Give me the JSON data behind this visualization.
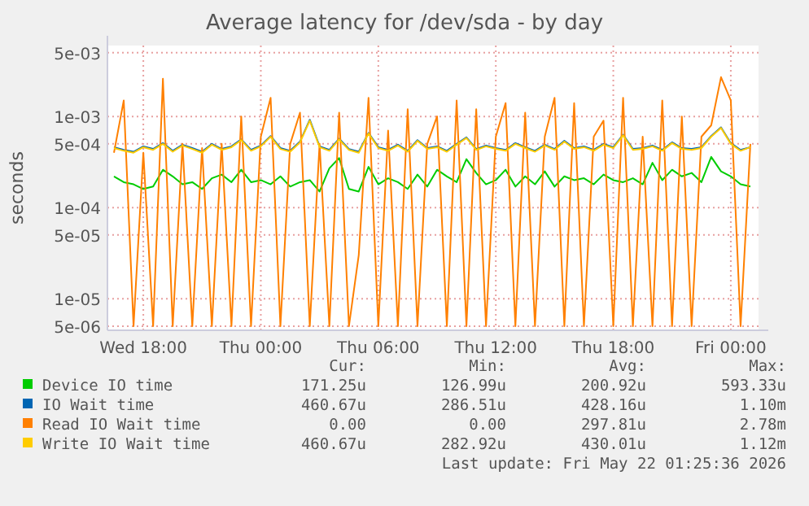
{
  "chart_data": {
    "type": "line",
    "title": "Average latency for /dev/sda - by day",
    "ylabel": "seconds",
    "log": "y",
    "grid": true,
    "legend": "bottom",
    "line_style": "solid",
    "marker": "none",
    "xlim": [
      "2026-05-20T16:10",
      "2026-05-22T01:25"
    ],
    "xticks": [
      {
        "value": "2026-05-20T18:00",
        "label": "Wed 18:00"
      },
      {
        "value": "2026-05-21T00:00",
        "label": "Thu 00:00"
      },
      {
        "value": "2026-05-21T06:00",
        "label": "Thu 06:00"
      },
      {
        "value": "2026-05-21T12:00",
        "label": "Thu 12:00"
      },
      {
        "value": "2026-05-21T18:00",
        "label": "Thu 18:00"
      },
      {
        "value": "2026-05-22T00:00",
        "label": "Fri 00:00"
      }
    ],
    "ylim": [
      4.5e-06,
      0.006
    ],
    "yticks": [
      {
        "value": 5e-06,
        "label": "5e-06"
      },
      {
        "value": 1e-05,
        "label": "1e-05"
      },
      {
        "value": 5e-05,
        "label": "5e-05"
      },
      {
        "value": 0.0001,
        "label": "1e-04"
      },
      {
        "value": 0.0005,
        "label": "5e-04"
      },
      {
        "value": 0.001,
        "label": "1e-03"
      },
      {
        "value": 0.005,
        "label": "5e-03"
      }
    ],
    "x": [
      "2026-05-20T16:30",
      "2026-05-20T17:00",
      "2026-05-20T17:30",
      "2026-05-20T18:00",
      "2026-05-20T18:30",
      "2026-05-20T19:00",
      "2026-05-20T19:30",
      "2026-05-20T20:00",
      "2026-05-20T20:30",
      "2026-05-20T21:00",
      "2026-05-20T21:30",
      "2026-05-20T22:00",
      "2026-05-20T22:30",
      "2026-05-20T23:00",
      "2026-05-20T23:30",
      "2026-05-21T00:00",
      "2026-05-21T00:30",
      "2026-05-21T01:00",
      "2026-05-21T01:30",
      "2026-05-21T02:00",
      "2026-05-21T02:30",
      "2026-05-21T03:00",
      "2026-05-21T03:30",
      "2026-05-21T04:00",
      "2026-05-21T04:30",
      "2026-05-21T05:00",
      "2026-05-21T05:30",
      "2026-05-21T06:00",
      "2026-05-21T06:30",
      "2026-05-21T07:00",
      "2026-05-21T07:30",
      "2026-05-21T08:00",
      "2026-05-21T08:30",
      "2026-05-21T09:00",
      "2026-05-21T09:30",
      "2026-05-21T10:00",
      "2026-05-21T10:30",
      "2026-05-21T11:00",
      "2026-05-21T11:30",
      "2026-05-21T12:00",
      "2026-05-21T12:30",
      "2026-05-21T13:00",
      "2026-05-21T13:30",
      "2026-05-21T14:00",
      "2026-05-21T14:30",
      "2026-05-21T15:00",
      "2026-05-21T15:30",
      "2026-05-21T16:00",
      "2026-05-21T16:30",
      "2026-05-21T17:00",
      "2026-05-21T17:30",
      "2026-05-21T18:00",
      "2026-05-21T18:30",
      "2026-05-21T19:00",
      "2026-05-21T19:30",
      "2026-05-21T20:00",
      "2026-05-21T20:30",
      "2026-05-21T21:00",
      "2026-05-21T21:30",
      "2026-05-21T22:00",
      "2026-05-21T22:30",
      "2026-05-21T23:00",
      "2026-05-21T23:30",
      "2026-05-22T00:00",
      "2026-05-22T00:30",
      "2026-05-22T01:00"
    ],
    "series": [
      {
        "name": "Device IO time",
        "color": "#00cc00",
        "values": [
          0.00022,
          0.00019,
          0.00018,
          0.00016,
          0.00017,
          0.00026,
          0.00022,
          0.00018,
          0.00019,
          0.00016,
          0.00021,
          0.00023,
          0.00019,
          0.00026,
          0.00019,
          0.0002,
          0.00018,
          0.00022,
          0.00017,
          0.00019,
          0.0002,
          0.00015,
          0.00027,
          0.00035,
          0.00016,
          0.00015,
          0.00028,
          0.00018,
          0.00021,
          0.00019,
          0.00016,
          0.00023,
          0.00017,
          0.00026,
          0.00022,
          0.00019,
          0.00034,
          0.00024,
          0.00018,
          0.0002,
          0.00026,
          0.00017,
          0.00022,
          0.00018,
          0.00025,
          0.00017,
          0.00022,
          0.0002,
          0.00021,
          0.00018,
          0.00023,
          0.0002,
          0.00019,
          0.00021,
          0.00018,
          0.00031,
          0.0002,
          0.00026,
          0.00022,
          0.00024,
          0.00019,
          0.00036,
          0.00025,
          0.00022,
          0.00018,
          0.00017
        ]
      },
      {
        "name": "IO Wait time",
        "color": "#0066b3",
        "values": [
          0.00046,
          0.00043,
          0.00041,
          0.00047,
          0.00044,
          0.00051,
          0.00042,
          0.00049,
          0.00045,
          0.00041,
          0.0005,
          0.00044,
          0.00047,
          0.00056,
          0.00043,
          0.00048,
          0.00061,
          0.00045,
          0.00042,
          0.00053,
          0.00092,
          0.00047,
          0.00043,
          0.00057,
          0.00044,
          0.00041,
          0.00066,
          0.00046,
          0.00043,
          0.00049,
          0.00042,
          0.00055,
          0.00045,
          0.00047,
          0.00042,
          0.0005,
          0.00059,
          0.00044,
          0.00048,
          0.00045,
          0.00043,
          0.00051,
          0.00046,
          0.00042,
          0.00049,
          0.00044,
          0.00054,
          0.00045,
          0.00047,
          0.00043,
          0.0005,
          0.00046,
          0.00063,
          0.00044,
          0.00045,
          0.00048,
          0.00043,
          0.00052,
          0.00045,
          0.00044,
          0.00046,
          0.00061,
          0.00076,
          0.00051,
          0.00043,
          0.00046
        ]
      },
      {
        "name": "Read IO Wait time",
        "color": "#ff8000",
        "values": [
          0.0004,
          0.0015,
          5e-06,
          0.0004,
          5e-06,
          0.0026,
          5e-06,
          0.0005,
          5e-06,
          0.00045,
          5e-06,
          0.0005,
          5e-06,
          0.001,
          5e-06,
          0.0006,
          0.0016,
          5e-06,
          0.0005,
          0.0011,
          5e-06,
          0.0005,
          5e-06,
          0.0011,
          5e-06,
          3e-05,
          0.0016,
          5e-06,
          0.0007,
          5e-06,
          0.0012,
          5e-06,
          0.0005,
          0.001,
          5e-06,
          0.0015,
          5e-06,
          0.0012,
          5e-06,
          0.0006,
          0.0014,
          5e-06,
          0.0011,
          5e-06,
          0.0006,
          0.0016,
          5e-06,
          0.0014,
          5e-06,
          0.0006,
          0.0009,
          5e-06,
          0.0016,
          5e-06,
          0.0006,
          5e-06,
          0.0015,
          5e-06,
          0.001,
          5e-06,
          0.0006,
          0.0008,
          0.0027,
          0.0015,
          5e-06,
          0.0005
        ]
      },
      {
        "name": "Write IO Wait time",
        "color": "#ffcc00",
        "values": [
          0.00045,
          0.00042,
          0.0004,
          0.00046,
          0.00043,
          0.0005,
          0.00041,
          0.00048,
          0.00044,
          0.0004,
          0.00049,
          0.00043,
          0.00046,
          0.00055,
          0.00042,
          0.00047,
          0.0006,
          0.00044,
          0.00041,
          0.00052,
          0.0009,
          0.00046,
          0.00042,
          0.00056,
          0.00043,
          0.0004,
          0.00065,
          0.00045,
          0.00042,
          0.00048,
          0.00041,
          0.00054,
          0.00044,
          0.00046,
          0.00041,
          0.00049,
          0.00058,
          0.00043,
          0.00047,
          0.00044,
          0.00042,
          0.0005,
          0.00045,
          0.00041,
          0.00048,
          0.00043,
          0.00053,
          0.00044,
          0.00046,
          0.00042,
          0.00049,
          0.00045,
          0.00062,
          0.00043,
          0.00044,
          0.00047,
          0.00042,
          0.00051,
          0.00044,
          0.00043,
          0.00045,
          0.0006,
          0.00075,
          0.0005,
          0.00042,
          0.00046
        ]
      }
    ],
    "annotations": [
      "Cur:",
      "Min:",
      "Avg:",
      "Max:",
      "171.25u",
      "126.99u",
      "200.92u",
      "593.33u",
      "460.67u",
      "286.51u",
      "428.16u",
      "1.10m",
      "0.00",
      "0.00",
      "297.81u",
      "2.78m",
      "460.67u",
      "282.92u",
      "430.01u",
      "1.12m",
      "Last update: Fri May 22 01:25:36 2026"
    ]
  }
}
